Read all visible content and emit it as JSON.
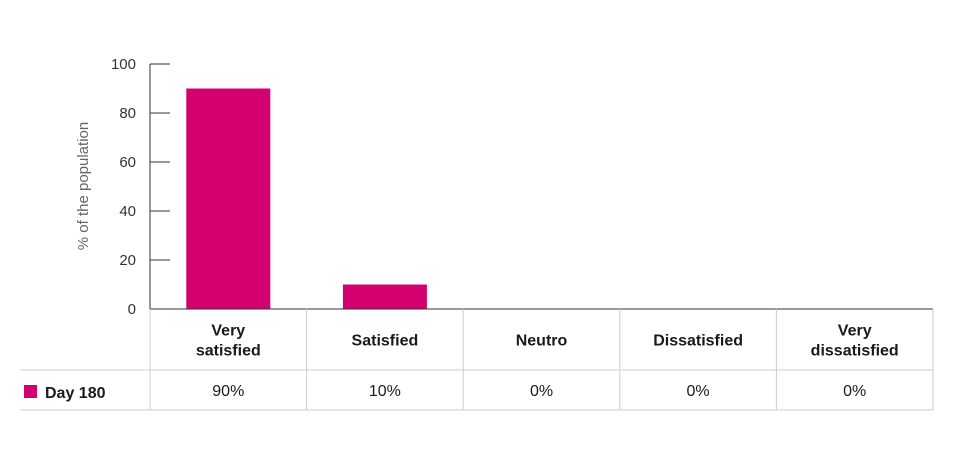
{
  "chart_data": {
    "type": "bar",
    "categories": [
      "Very satisfied",
      "Satisfied",
      "Neutro",
      "Dissatisfied",
      "Very dissatisfied"
    ],
    "category_lines": [
      [
        "Very",
        "satisfied"
      ],
      [
        "Satisfied"
      ],
      [
        "Neutro"
      ],
      [
        "Dissatisfied"
      ],
      [
        "Very",
        "dissatisfied"
      ]
    ],
    "series": [
      {
        "name": "Day 180",
        "values": [
          90,
          10,
          0,
          0,
          0
        ],
        "color": "#d4006f"
      }
    ],
    "table_values": [
      "90%",
      "10%",
      "0%",
      "0%",
      "0%"
    ],
    "ylabel": "% of the population",
    "ylim": [
      0,
      100
    ],
    "yticks": [
      "0",
      "20",
      "40",
      "60",
      "80",
      "100"
    ],
    "ytick_values": [
      0,
      20,
      40,
      60,
      80,
      100
    ],
    "grid": false,
    "legend_placement": "table-row-left"
  }
}
